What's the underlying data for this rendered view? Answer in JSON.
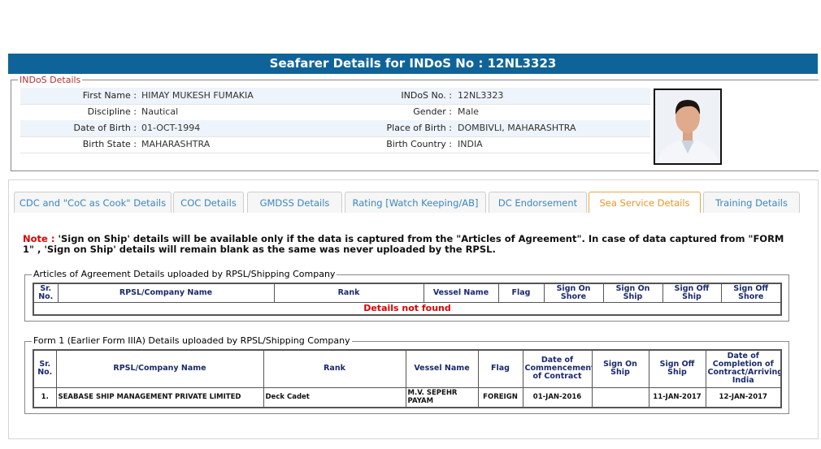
{
  "header": {
    "title": "Seafarer Details for INDoS No : 12NL3323"
  },
  "indos": {
    "legend": "INDoS Details",
    "rows": [
      [
        {
          "label": "First Name :",
          "value": "HIMAY MUKESH FUMAKIA"
        },
        {
          "label": "INDoS No. :",
          "value": "12NL3323"
        }
      ],
      [
        {
          "label": "Discipline :",
          "value": "Nautical"
        },
        {
          "label": "Gender :",
          "value": "Male"
        }
      ],
      [
        {
          "label": "Date of Birth :",
          "value": "01-OCT-1994"
        },
        {
          "label": "Place of Birth :",
          "value": "DOMBIVLI, MAHARASHTRA"
        }
      ],
      [
        {
          "label": "Birth State :",
          "value": "MAHARASHTRA"
        },
        {
          "label": "Birth Country :",
          "value": "INDIA"
        }
      ]
    ]
  },
  "tabs": [
    "CDC and \"CoC as Cook\" Details",
    "COC Details",
    "GMDSS Details",
    "Rating [Watch Keeping/AB]",
    "DC Endorsement",
    "Sea Service Details",
    "Training Details"
  ],
  "note": {
    "label": "Note :",
    "text": "'Sign on Ship' details will be available only if the data is captured from the \"Articles of Agreement\". In case of data captured from \"FORM 1\" , 'Sign on Ship' details will remain blank as the same was never uploaded by the RPSL."
  },
  "articles": {
    "legend": "Articles of Agreement Details uploaded by RPSL/Shipping Company",
    "headers": [
      "Sr. No.",
      "RPSL/Company Name",
      "Rank",
      "Vessel Name",
      "Flag",
      "Sign On Shore",
      "Sign On Ship",
      "Sign Off Ship",
      "Sign Off Shore"
    ],
    "message": "Details not found"
  },
  "form1": {
    "legend": "Form 1 (Earlier Form IIIA) Details uploaded by RPSL/Shipping Company",
    "headers": [
      "Sr. No.",
      "RPSL/Company Name",
      "Rank",
      "Vessel Name",
      "Flag",
      "Date of Commencement of Contract",
      "Sign On Ship",
      "Sign Off Ship",
      "Date of Completion of Contract/Arriving India"
    ],
    "rows": [
      [
        "1.",
        "SEABASE SHIP MANAGEMENT PRIVATE LIMITED",
        "Deck Cadet",
        "M.V. SEPEHR PAYAM",
        "FOREIGN",
        "01-JAN-2016",
        null,
        "11-JAN-2017",
        "12-JAN-2017"
      ]
    ]
  }
}
